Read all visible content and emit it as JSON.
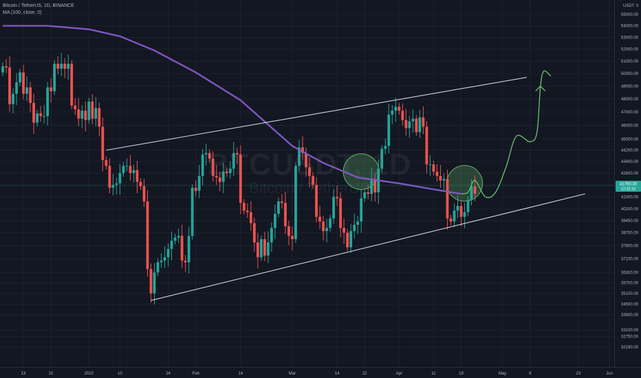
{
  "legend": {
    "line1": "Bitcoin / TetherUS, 1D, BINANCE",
    "line2": "MA (100, close, 0)"
  },
  "header": {
    "currency": "USDT",
    "zero": "0"
  },
  "watermark": {
    "symbol": "BTCUSDT, 1D",
    "name": "Bitcoin / TetherUS"
  },
  "colors": {
    "background": "#131722",
    "up": "#26a69a",
    "down": "#ef5350",
    "ma": "#7e57c2",
    "projection": "#66bb6a",
    "trendline": "#d1d4dc",
    "price_label": "#26a69a"
  },
  "chart_data": {
    "type": "candlestick",
    "y_axis": {
      "scale": "log",
      "range": [
        32000,
        56000
      ],
      "ticks": [
        55000,
        54000,
        53000,
        52000,
        51000,
        50000,
        49000,
        48000,
        47000,
        46000,
        45000,
        44200,
        43400,
        42600,
        41800,
        41000,
        40200,
        39450,
        38700,
        37900,
        37100,
        36300,
        35700,
        35100,
        34500,
        33900,
        33100,
        32750,
        32190
      ],
      "tick_labels": [
        "55000.00",
        "54000.00",
        "53000.00",
        "52000.00",
        "51000.00",
        "50000.00",
        "49000.00",
        "48000.00",
        "47000.00",
        "46000.00",
        "45000.00",
        "44200.00",
        "43400.00",
        "42600.00",
        "41800.00",
        "41000.00",
        "40200.00",
        "39450.00",
        "38700.00",
        "37900.00",
        "37100.00",
        "36300.00",
        "35700.00",
        "35100.00",
        "34500.00",
        "33900.00",
        "33100.00",
        "32750.00",
        "32190.00"
      ]
    },
    "x_axis": {
      "start_date": "2021-12-07",
      "end_date": "2022-06-01",
      "ticks": [
        {
          "date": "2021-12-13",
          "label": "13"
        },
        {
          "date": "2021-12-21",
          "label": "21"
        },
        {
          "date": "2022-01-01",
          "label": "2022"
        },
        {
          "date": "2022-01-10",
          "label": "10"
        },
        {
          "date": "2022-01-24",
          "label": "24"
        },
        {
          "date": "2022-02-01",
          "label": "Feb"
        },
        {
          "date": "2022-02-14",
          "label": "14"
        },
        {
          "date": "2022-03-01",
          "label": "Mar"
        },
        {
          "date": "2022-03-14",
          "label": "14"
        },
        {
          "date": "2022-03-22",
          "label": "22"
        },
        {
          "date": "2022-04-01",
          "label": "Apr"
        },
        {
          "date": "2022-04-11",
          "label": "11"
        },
        {
          "date": "2022-04-19",
          "label": "19"
        },
        {
          "date": "2022-05-01",
          "label": "May"
        },
        {
          "date": "2022-05-09",
          "label": "9"
        },
        {
          "date": "2022-05-23",
          "label": "23"
        },
        {
          "date": "2022-06-01",
          "label": "Jun"
        }
      ]
    },
    "candles_close": [
      50600,
      50500,
      47600,
      48400,
      49300,
      50100,
      48400,
      48900,
      47700,
      46200,
      46900,
      46700,
      46700,
      48900,
      48600,
      50800,
      50400,
      50800,
      50400,
      50800,
      47500,
      47200,
      46500,
      47100,
      46400,
      47800,
      46500,
      47300,
      45900,
      43500,
      43100,
      41600,
      41800,
      41900,
      42600,
      43100,
      43100,
      42600,
      42800,
      42000,
      41700,
      40700,
      36500,
      35100,
      36300,
      36900,
      37000,
      37200,
      37700,
      38200,
      38400,
      38500,
      37000,
      36900,
      38500,
      41600,
      41400,
      42400,
      43900,
      44000,
      43600,
      42400,
      42300,
      42000,
      42700,
      42600,
      42900,
      44000,
      43900,
      40600,
      40100,
      40000,
      39300,
      38100,
      37200,
      38300,
      37300,
      38100,
      39000,
      39900,
      40700,
      40600,
      39100,
      38500,
      38300,
      43100,
      44400,
      44000,
      43000,
      42400,
      41800,
      39700,
      39400,
      38800,
      39000,
      39600,
      41000,
      40900,
      39000,
      38700,
      37800,
      38800,
      39200,
      39400,
      40900,
      41300,
      41200,
      42200,
      41300,
      42900,
      44300,
      44500,
      46800,
      47100,
      47400,
      47100,
      46400,
      45800,
      46300,
      46500,
      45500,
      46600,
      45900,
      43200,
      43200,
      42700,
      42400,
      42100,
      42200,
      39600,
      39400,
      40100,
      40400,
      39700,
      40000,
      40800,
      41700,
      41200
    ],
    "moving_average": {
      "name": "MA (100, close, 0)",
      "points": [
        {
          "date": "2021-12-07",
          "value": 54000
        },
        {
          "date": "2021-12-20",
          "value": 54000
        },
        {
          "date": "2022-01-01",
          "value": 53700
        },
        {
          "date": "2022-01-10",
          "value": 53100
        },
        {
          "date": "2022-01-20",
          "value": 51900
        },
        {
          "date": "2022-02-01",
          "value": 50100
        },
        {
          "date": "2022-02-14",
          "value": 47900
        },
        {
          "date": "2022-03-01",
          "value": 44500
        },
        {
          "date": "2022-03-10",
          "value": 43300
        },
        {
          "date": "2022-03-20",
          "value": 42300
        },
        {
          "date": "2022-04-01",
          "value": 41900
        },
        {
          "date": "2022-04-11",
          "value": 41500
        },
        {
          "date": "2022-04-19",
          "value": 41200
        }
      ]
    },
    "trendlines": [
      {
        "from": {
          "date": "2022-01-06",
          "value": 44200
        },
        "to": {
          "date": "2022-05-08",
          "value": 49700
        }
      },
      {
        "from": {
          "date": "2022-01-19",
          "value": 34700
        },
        "to": {
          "date": "2022-05-25",
          "value": 41200
        }
      }
    ],
    "projection_path": [
      {
        "date": "2022-04-19",
        "value": 41200
      },
      {
        "date": "2022-04-21",
        "value": 41300
      },
      {
        "date": "2022-04-23",
        "value": 42100
      },
      {
        "date": "2022-04-26",
        "value": 41000
      },
      {
        "date": "2022-04-29",
        "value": 41300
      },
      {
        "date": "2022-05-02",
        "value": 43000
      },
      {
        "date": "2022-05-05",
        "value": 45200
      },
      {
        "date": "2022-05-09",
        "value": 44800
      },
      {
        "date": "2022-05-11",
        "value": 45500
      },
      {
        "date": "2022-05-12",
        "value": 49000
      },
      {
        "date": "2022-05-13",
        "value": 50200
      },
      {
        "date": "2022-05-15",
        "value": 49800
      }
    ],
    "highlight_circles": [
      {
        "date": "2022-03-21",
        "value": 42700
      },
      {
        "date": "2022-04-20",
        "value": 41900
      }
    ],
    "last_price": {
      "value": 41750,
      "label": "41750.30",
      "countdown": "12:32:16"
    }
  }
}
